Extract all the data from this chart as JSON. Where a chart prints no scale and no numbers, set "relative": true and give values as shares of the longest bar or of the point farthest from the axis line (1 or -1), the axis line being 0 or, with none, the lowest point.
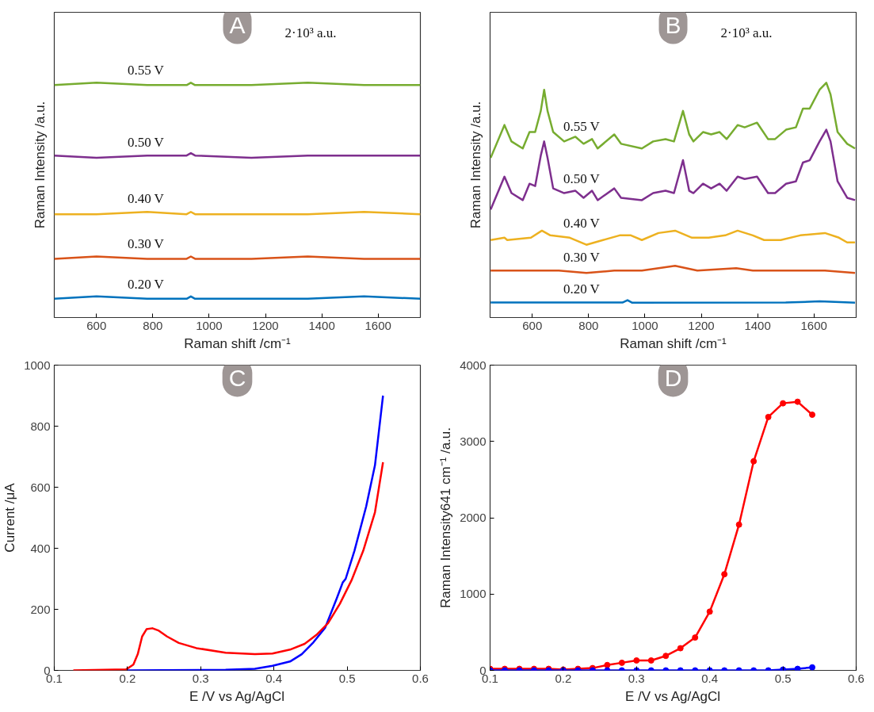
{
  "chart_data": [
    {
      "type": "line",
      "relative": true,
      "xlabel": "Raman shift /cm⁻¹",
      "ylabel": "Raman Intensity /a.u.",
      "xlim": [
        450,
        1750
      ],
      "xticks": [
        600,
        800,
        1000,
        1200,
        1400,
        1600
      ],
      "annotations": [
        "A",
        "2·10³ a.u."
      ],
      "series": [
        {
          "name": "0.20 V",
          "color": "#0072bd",
          "x": [
            450,
            600,
            780,
            920,
            935,
            950,
            1150,
            1350,
            1550,
            1750
          ],
          "values": [
            0.08,
            0.09,
            0.08,
            0.08,
            0.09,
            0.08,
            0.08,
            0.08,
            0.09,
            0.08
          ]
        },
        {
          "name": "0.30 V",
          "color": "#d95319",
          "x": [
            450,
            600,
            780,
            920,
            935,
            950,
            1150,
            1350,
            1550,
            1750
          ],
          "values": [
            0.25,
            0.26,
            0.25,
            0.25,
            0.26,
            0.25,
            0.25,
            0.26,
            0.25,
            0.25
          ]
        },
        {
          "name": "0.40 V",
          "color": "#edb120",
          "x": [
            450,
            600,
            780,
            920,
            935,
            950,
            1150,
            1350,
            1550,
            1750
          ],
          "values": [
            0.44,
            0.44,
            0.45,
            0.44,
            0.45,
            0.44,
            0.44,
            0.44,
            0.45,
            0.44
          ]
        },
        {
          "name": "0.50 V",
          "color": "#7e2f8e",
          "x": [
            450,
            600,
            780,
            920,
            935,
            950,
            1150,
            1350,
            1550,
            1750
          ],
          "values": [
            0.69,
            0.68,
            0.69,
            0.69,
            0.7,
            0.69,
            0.68,
            0.69,
            0.69,
            0.69
          ]
        },
        {
          "name": "0.55 V",
          "color": "#77ac30",
          "x": [
            450,
            600,
            780,
            920,
            935,
            950,
            1150,
            1350,
            1550,
            1750
          ],
          "values": [
            0.99,
            1.0,
            0.99,
            0.99,
            1.0,
            0.99,
            0.99,
            1.0,
            0.99,
            0.99
          ]
        }
      ]
    },
    {
      "type": "line",
      "relative": true,
      "xlabel": "Raman shift /cm⁻¹",
      "ylabel": "Raman Intensity /a.u.",
      "xlim": [
        450,
        1750
      ],
      "xticks": [
        600,
        800,
        1000,
        1200,
        1400,
        1600
      ],
      "annotations": [
        "B",
        "2·10³ a.u."
      ],
      "series": [
        {
          "name": "0.20 V",
          "color": "#0072bd",
          "x": [
            452,
            920,
            938,
            955,
            1500,
            1620,
            1746
          ],
          "values": [
            0.064,
            0.064,
            0.074,
            0.063,
            0.064,
            0.069,
            0.063
          ]
        },
        {
          "name": "0.30 V",
          "color": "#d95319",
          "x": [
            452,
            595,
            694,
            792,
            891,
            989,
            1107,
            1186,
            1324,
            1383,
            1482,
            1639,
            1746
          ],
          "values": [
            0.2,
            0.2,
            0.2,
            0.19,
            0.2,
            0.2,
            0.22,
            0.2,
            0.21,
            0.2,
            0.2,
            0.2,
            0.19
          ]
        },
        {
          "name": "0.40 V",
          "color": "#edb120",
          "x": [
            452,
            501,
            511,
            595,
            634,
            664,
            733,
            792,
            851,
            910,
            950,
            989,
            1048,
            1107,
            1167,
            1226,
            1285,
            1329,
            1383,
            1423,
            1482,
            1551,
            1639,
            1689,
            1718,
            1746
          ],
          "values": [
            0.33,
            0.34,
            0.33,
            0.34,
            0.37,
            0.35,
            0.34,
            0.31,
            0.33,
            0.35,
            0.35,
            0.33,
            0.36,
            0.37,
            0.34,
            0.34,
            0.35,
            0.37,
            0.35,
            0.33,
            0.33,
            0.35,
            0.36,
            0.34,
            0.32,
            0.32
          ]
        },
        {
          "name": "0.50 V",
          "color": "#7e2f8e",
          "x": [
            452,
            501,
            526,
            566,
            590,
            610,
            630,
            642,
            654,
            674,
            713,
            753,
            782,
            812,
            832,
            891,
            915,
            989,
            1029,
            1073,
            1103,
            1135,
            1157,
            1172,
            1206,
            1235,
            1265,
            1290,
            1329,
            1354,
            1398,
            1437,
            1462,
            1501,
            1536,
            1561,
            1585,
            1620,
            1644,
            1659,
            1684,
            1718,
            1746
          ],
          "values": [
            0.46,
            0.6,
            0.53,
            0.5,
            0.57,
            0.56,
            0.69,
            0.75,
            0.68,
            0.55,
            0.53,
            0.54,
            0.51,
            0.54,
            0.5,
            0.55,
            0.51,
            0.5,
            0.53,
            0.54,
            0.53,
            0.67,
            0.54,
            0.53,
            0.57,
            0.55,
            0.57,
            0.54,
            0.6,
            0.59,
            0.6,
            0.53,
            0.53,
            0.57,
            0.58,
            0.66,
            0.67,
            0.75,
            0.8,
            0.75,
            0.58,
            0.51,
            0.5
          ]
        },
        {
          "name": "0.55 V",
          "color": "#77ac30",
          "x": [
            452,
            501,
            526,
            566,
            590,
            610,
            630,
            642,
            654,
            674,
            713,
            753,
            782,
            812,
            832,
            891,
            915,
            989,
            1029,
            1073,
            1103,
            1135,
            1157,
            1172,
            1206,
            1235,
            1265,
            1290,
            1329,
            1354,
            1398,
            1437,
            1462,
            1501,
            1536,
            1561,
            1585,
            1620,
            1644,
            1659,
            1684,
            1718,
            1746
          ],
          "values": [
            0.68,
            0.82,
            0.75,
            0.72,
            0.79,
            0.79,
            0.88,
            0.97,
            0.88,
            0.79,
            0.75,
            0.77,
            0.74,
            0.76,
            0.72,
            0.78,
            0.74,
            0.72,
            0.75,
            0.76,
            0.75,
            0.88,
            0.78,
            0.75,
            0.79,
            0.78,
            0.79,
            0.76,
            0.82,
            0.81,
            0.83,
            0.76,
            0.76,
            0.8,
            0.81,
            0.89,
            0.89,
            0.97,
            1.0,
            0.95,
            0.79,
            0.74,
            0.72
          ]
        }
      ]
    },
    {
      "type": "line",
      "xlabel": "E /V vs Ag/AgCl",
      "ylabel": "Current /μA",
      "xlim": [
        0.1,
        0.6
      ],
      "xticks": [
        0.1,
        0.2,
        0.3,
        0.4,
        0.5,
        0.6
      ],
      "ylim": [
        0,
        1000
      ],
      "yticks": [
        0,
        200,
        400,
        600,
        800,
        1000
      ],
      "annotations": [
        "C"
      ],
      "series": [
        {
          "color": "#0000ff",
          "x": [
            0.2,
            0.334,
            0.374,
            0.398,
            0.422,
            0.438,
            0.454,
            0.47,
            0.486,
            0.494,
            0.498,
            0.51,
            0.526,
            0.538,
            0.549
          ],
          "values": [
            0,
            2,
            5,
            15,
            29,
            53,
            92,
            140,
            237,
            288,
            300,
            392,
            537,
            672,
            900
          ]
        },
        {
          "color": "#ff0000",
          "x": [
            0.126,
            0.198,
            0.208,
            0.214,
            0.22,
            0.226,
            0.234,
            0.242,
            0.254,
            0.27,
            0.294,
            0.334,
            0.374,
            0.398,
            0.422,
            0.442,
            0.458,
            0.474,
            0.49,
            0.506,
            0.522,
            0.538,
            0.549
          ],
          "values": [
            0,
            3,
            19,
            53,
            111,
            135,
            138,
            131,
            111,
            90,
            73,
            58,
            53,
            55,
            68,
            87,
            116,
            155,
            218,
            295,
            392,
            518,
            682
          ]
        }
      ]
    },
    {
      "type": "line",
      "marker": "circle",
      "xlabel": "E /V vs Ag/AgCl",
      "ylabel": "Raman Intensity641 cm⁻¹ /a.u.",
      "xlim": [
        0.1,
        0.6
      ],
      "xticks": [
        0.1,
        0.2,
        0.3,
        0.4,
        0.5,
        0.6
      ],
      "ylim": [
        0,
        4000
      ],
      "yticks": [
        0,
        1000,
        2000,
        3000,
        4000
      ],
      "annotations": [
        "D"
      ],
      "series": [
        {
          "color": "#ff0000",
          "x": [
            0.1,
            0.12,
            0.14,
            0.16,
            0.18,
            0.2,
            0.22,
            0.24,
            0.26,
            0.28,
            0.3,
            0.32,
            0.34,
            0.36,
            0.38,
            0.4,
            0.42,
            0.44,
            0.46,
            0.48,
            0.5,
            0.52,
            0.54
          ],
          "values": [
            20,
            20,
            20,
            20,
            20,
            10,
            20,
            30,
            70,
            100,
            130,
            130,
            190,
            290,
            430,
            770,
            1260,
            1910,
            2740,
            3320,
            3500,
            3520,
            3350
          ]
        },
        {
          "color": "#0000ff",
          "x": [
            0.1,
            0.12,
            0.14,
            0.16,
            0.18,
            0.2,
            0.22,
            0.24,
            0.26,
            0.28,
            0.3,
            0.32,
            0.34,
            0.36,
            0.38,
            0.4,
            0.42,
            0.44,
            0.46,
            0.48,
            0.5,
            0.52,
            0.54
          ],
          "values": [
            0,
            0,
            0,
            0,
            0,
            0,
            0,
            0,
            0,
            0,
            0,
            0,
            0,
            0,
            0,
            0,
            0,
            0,
            0,
            0,
            10,
            20,
            40
          ]
        }
      ]
    }
  ]
}
